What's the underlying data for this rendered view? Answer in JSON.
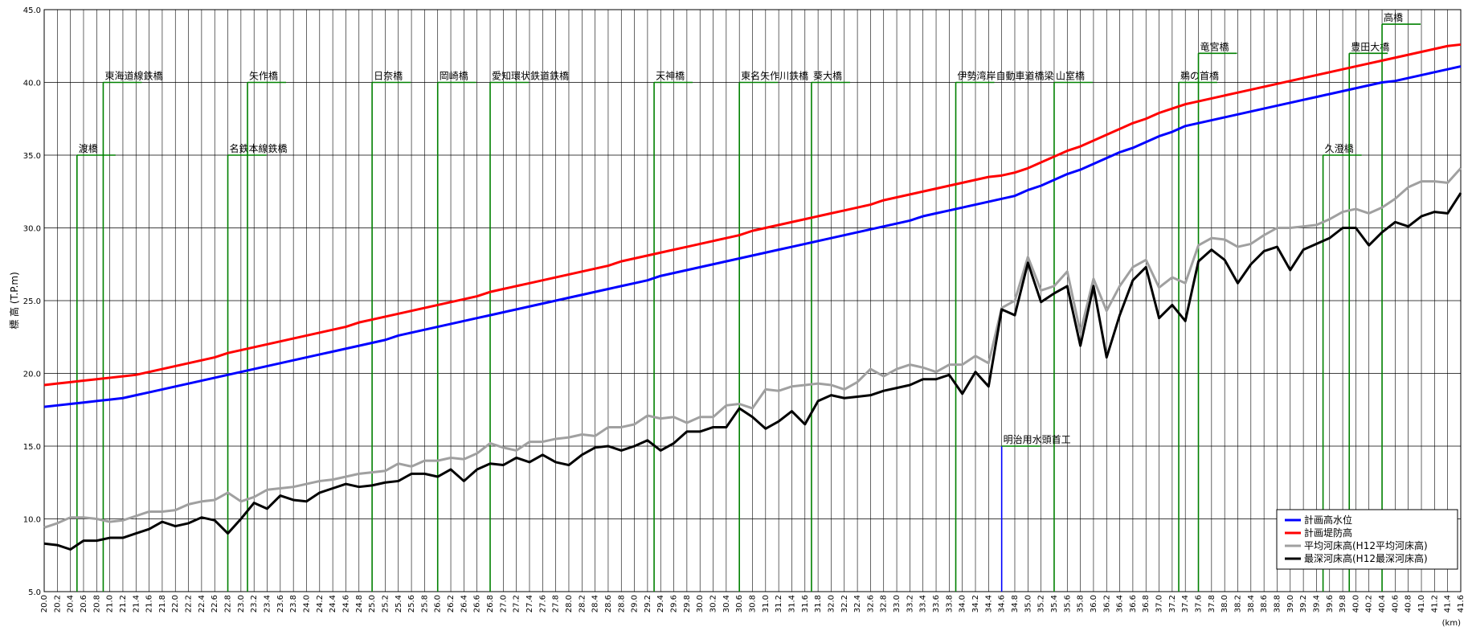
{
  "chart_data": {
    "type": "line",
    "y_axis_label": "標 高 (T.P.m)",
    "x_axis_label": "(km)",
    "xlim": [
      20,
      41.6
    ],
    "ylim": [
      5,
      45
    ],
    "grid": true,
    "legend": "lower right",
    "yticks": [
      {
        "value": 5,
        "label": "5.0"
      },
      {
        "value": 10,
        "label": "10.0"
      },
      {
        "value": 15,
        "label": "15.0"
      },
      {
        "value": 20,
        "label": "20.0"
      },
      {
        "value": 25,
        "label": "25.0"
      },
      {
        "value": 30,
        "label": "30.0"
      },
      {
        "value": 35,
        "label": "35.0"
      },
      {
        "value": 40,
        "label": "40.0"
      },
      {
        "value": 45,
        "label": "45.0"
      }
    ],
    "xticks": [
      {
        "value": 20,
        "label": "20.0"
      },
      {
        "value": 20.2,
        "label": "20.2"
      },
      {
        "value": 20.4,
        "label": "20.4"
      },
      {
        "value": 20.6,
        "label": "20.6"
      },
      {
        "value": 20.8,
        "label": "20.8"
      },
      {
        "value": 21,
        "label": "21.0"
      },
      {
        "value": 21.2,
        "label": "21.2"
      },
      {
        "value": 21.4,
        "label": "21.4"
      },
      {
        "value": 21.6,
        "label": "21.6"
      },
      {
        "value": 21.8,
        "label": "21.8"
      },
      {
        "value": 22,
        "label": "22.0"
      },
      {
        "value": 22.2,
        "label": "22.2"
      },
      {
        "value": 22.4,
        "label": "22.4"
      },
      {
        "value": 22.6,
        "label": "22.6"
      },
      {
        "value": 22.8,
        "label": "22.8"
      },
      {
        "value": 23,
        "label": "23.0"
      },
      {
        "value": 23.2,
        "label": "23.2"
      },
      {
        "value": 23.4,
        "label": "23.4"
      },
      {
        "value": 23.6,
        "label": "23.6"
      },
      {
        "value": 23.8,
        "label": "23.8"
      },
      {
        "value": 24,
        "label": "24.0"
      },
      {
        "value": 24.2,
        "label": "24.2"
      },
      {
        "value": 24.4,
        "label": "24.4"
      },
      {
        "value": 24.6,
        "label": "24.6"
      },
      {
        "value": 24.8,
        "label": "24.8"
      },
      {
        "value": 25,
        "label": "25.0"
      },
      {
        "value": 25.2,
        "label": "25.2"
      },
      {
        "value": 25.4,
        "label": "25.4"
      },
      {
        "value": 25.6,
        "label": "25.6"
      },
      {
        "value": 25.8,
        "label": "25.8"
      },
      {
        "value": 26,
        "label": "26.0"
      },
      {
        "value": 26.2,
        "label": "26.2"
      },
      {
        "value": 26.4,
        "label": "26.4"
      },
      {
        "value": 26.6,
        "label": "26.6"
      },
      {
        "value": 26.8,
        "label": "26.8"
      },
      {
        "value": 27,
        "label": "27.0"
      },
      {
        "value": 27.2,
        "label": "27.2"
      },
      {
        "value": 27.4,
        "label": "27.4"
      },
      {
        "value": 27.6,
        "label": "27.6"
      },
      {
        "value": 27.8,
        "label": "27.8"
      },
      {
        "value": 28,
        "label": "28.0"
      },
      {
        "value": 28.2,
        "label": "28.2"
      },
      {
        "value": 28.4,
        "label": "28.4"
      },
      {
        "value": 28.6,
        "label": "28.6"
      },
      {
        "value": 28.8,
        "label": "28.8"
      },
      {
        "value": 29,
        "label": "29.0"
      },
      {
        "value": 29.2,
        "label": "29.2"
      },
      {
        "value": 29.4,
        "label": "29.4"
      },
      {
        "value": 29.6,
        "label": "29.6"
      },
      {
        "value": 29.8,
        "label": "29.8"
      },
      {
        "value": 30,
        "label": "30.0"
      },
      {
        "value": 30.2,
        "label": "30.2"
      },
      {
        "value": 30.4,
        "label": "30.4"
      },
      {
        "value": 30.6,
        "label": "30.6"
      },
      {
        "value": 30.8,
        "label": "30.8"
      },
      {
        "value": 31,
        "label": "31.0"
      },
      {
        "value": 31.2,
        "label": "31.2"
      },
      {
        "value": 31.4,
        "label": "31.4"
      },
      {
        "value": 31.6,
        "label": "31.6"
      },
      {
        "value": 31.8,
        "label": "31.8"
      },
      {
        "value": 32,
        "label": "32.0"
      },
      {
        "value": 32.2,
        "label": "32.2"
      },
      {
        "value": 32.4,
        "label": "32.4"
      },
      {
        "value": 32.6,
        "label": "32.6"
      },
      {
        "value": 32.8,
        "label": "32.8"
      },
      {
        "value": 33,
        "label": "33.0"
      },
      {
        "value": 33.2,
        "label": "33.2"
      },
      {
        "value": 33.4,
        "label": "33.4"
      },
      {
        "value": 33.6,
        "label": "33.6"
      },
      {
        "value": 33.8,
        "label": "33.8"
      },
      {
        "value": 34,
        "label": "34.0"
      },
      {
        "value": 34.2,
        "label": "34.2"
      },
      {
        "value": 34.4,
        "label": "34.4"
      },
      {
        "value": 34.6,
        "label": "34.6"
      },
      {
        "value": 34.8,
        "label": "34.8"
      },
      {
        "value": 35,
        "label": "35.0"
      },
      {
        "value": 35.2,
        "label": "35.2"
      },
      {
        "value": 35.4,
        "label": "35.4"
      },
      {
        "value": 35.6,
        "label": "35.6"
      },
      {
        "value": 35.8,
        "label": "35.8"
      },
      {
        "value": 36,
        "label": "36.0"
      },
      {
        "value": 36.2,
        "label": "36.2"
      },
      {
        "value": 36.4,
        "label": "36.4"
      },
      {
        "value": 36.6,
        "label": "36.6"
      },
      {
        "value": 36.8,
        "label": "36.8"
      },
      {
        "value": 37,
        "label": "37.0"
      },
      {
        "value": 37.2,
        "label": "37.2"
      },
      {
        "value": 37.4,
        "label": "37.4"
      },
      {
        "value": 37.6,
        "label": "37.6"
      },
      {
        "value": 37.8,
        "label": "37.8"
      },
      {
        "value": 38,
        "label": "38.0"
      },
      {
        "value": 38.2,
        "label": "38.2"
      },
      {
        "value": 38.4,
        "label": "38.4"
      },
      {
        "value": 38.6,
        "label": "38.6"
      },
      {
        "value": 38.8,
        "label": "38.8"
      },
      {
        "value": 39,
        "label": "39.0"
      },
      {
        "value": 39.2,
        "label": "39.2"
      },
      {
        "value": 39.4,
        "label": "39.4"
      },
      {
        "value": 39.6,
        "label": "39.6"
      },
      {
        "value": 39.8,
        "label": "39.8"
      },
      {
        "value": 40,
        "label": "40.0"
      },
      {
        "value": 40.2,
        "label": "40.2"
      },
      {
        "value": 40.4,
        "label": "40.4"
      },
      {
        "value": 40.6,
        "label": "40.6"
      },
      {
        "value": 40.8,
        "label": "40.8"
      },
      {
        "value": 41,
        "label": "41.0"
      },
      {
        "value": 41.2,
        "label": "41.2"
      },
      {
        "value": 41.4,
        "label": "41.4"
      },
      {
        "value": 41.6,
        "label": "41.6"
      }
    ],
    "x": [
      20,
      20.2,
      20.4,
      20.6,
      20.8,
      21,
      21.2,
      21.4,
      21.6,
      21.8,
      22,
      22.2,
      22.4,
      22.6,
      22.8,
      23,
      23.2,
      23.4,
      23.6,
      23.8,
      24,
      24.2,
      24.4,
      24.6,
      24.8,
      25,
      25.2,
      25.4,
      25.6,
      25.8,
      26,
      26.2,
      26.4,
      26.6,
      26.8,
      27,
      27.2,
      27.4,
      27.6,
      27.8,
      28,
      28.2,
      28.4,
      28.6,
      28.8,
      29,
      29.2,
      29.4,
      29.6,
      29.8,
      30,
      30.2,
      30.4,
      30.6,
      30.8,
      31,
      31.2,
      31.4,
      31.6,
      31.8,
      32,
      32.2,
      32.4,
      32.6,
      32.8,
      33,
      33.2,
      33.4,
      33.6,
      33.8,
      34,
      34.2,
      34.4,
      34.6,
      34.8,
      35,
      35.2,
      35.4,
      35.6,
      35.8,
      36,
      36.2,
      36.4,
      36.6,
      36.8,
      37,
      37.2,
      37.4,
      37.6,
      37.8,
      38,
      38.2,
      38.4,
      38.6,
      38.8,
      39,
      39.2,
      39.4,
      39.6,
      39.8,
      40,
      40.2,
      40.4,
      40.6,
      40.8,
      41,
      41.2,
      41.4,
      41.6
    ],
    "series": [
      {
        "name": "計画高水位",
        "color": "#0000ff",
        "values": [
          17.7,
          17.8,
          17.9,
          18.0,
          18.1,
          18.2,
          18.3,
          18.5,
          18.7,
          18.9,
          19.1,
          19.3,
          19.5,
          19.7,
          19.9,
          20.1,
          20.3,
          20.5,
          20.7,
          20.9,
          21.1,
          21.3,
          21.5,
          21.7,
          21.9,
          22.1,
          22.3,
          22.6,
          22.8,
          23.0,
          23.2,
          23.4,
          23.6,
          23.8,
          24.0,
          24.2,
          24.4,
          24.6,
          24.8,
          25.0,
          25.2,
          25.4,
          25.6,
          25.8,
          26.0,
          26.2,
          26.4,
          26.7,
          26.9,
          27.1,
          27.3,
          27.5,
          27.7,
          27.9,
          28.1,
          28.3,
          28.5,
          28.7,
          28.9,
          29.1,
          29.3,
          29.5,
          29.7,
          29.9,
          30.1,
          30.3,
          30.5,
          30.8,
          31.0,
          31.2,
          31.4,
          31.6,
          31.8,
          32.0,
          32.2,
          32.6,
          32.9,
          33.3,
          33.7,
          34.0,
          34.4,
          34.8,
          35.2,
          35.5,
          35.9,
          36.3,
          36.6,
          37.0,
          37.2,
          37.4,
          37.6,
          37.8,
          38.0,
          38.2,
          38.4,
          38.6,
          38.8,
          39.0,
          39.2,
          39.4,
          39.6,
          39.8,
          40.0,
          40.1,
          40.3,
          40.5,
          40.7,
          40.9,
          41.1
        ]
      },
      {
        "name": "計画堤防高",
        "color": "#ff0000",
        "values": [
          19.2,
          19.3,
          19.4,
          19.5,
          19.6,
          19.7,
          19.8,
          19.9,
          20.1,
          20.3,
          20.5,
          20.7,
          20.9,
          21.1,
          21.4,
          21.6,
          21.8,
          22.0,
          22.2,
          22.4,
          22.6,
          22.8,
          23.0,
          23.2,
          23.5,
          23.7,
          23.9,
          24.1,
          24.3,
          24.5,
          24.7,
          24.9,
          25.1,
          25.3,
          25.6,
          25.8,
          26.0,
          26.2,
          26.4,
          26.6,
          26.8,
          27.0,
          27.2,
          27.4,
          27.7,
          27.9,
          28.1,
          28.3,
          28.5,
          28.7,
          28.9,
          29.1,
          29.3,
          29.5,
          29.8,
          30.0,
          30.2,
          30.4,
          30.6,
          30.8,
          31.0,
          31.2,
          31.4,
          31.6,
          31.9,
          32.1,
          32.3,
          32.5,
          32.7,
          32.9,
          33.1,
          33.3,
          33.5,
          33.6,
          33.8,
          34.1,
          34.5,
          34.9,
          35.3,
          35.6,
          36.0,
          36.4,
          36.8,
          37.2,
          37.5,
          37.9,
          38.2,
          38.5,
          38.7,
          38.9,
          39.1,
          39.3,
          39.5,
          39.7,
          39.9,
          40.1,
          40.3,
          40.5,
          40.7,
          40.9,
          41.1,
          41.3,
          41.5,
          41.7,
          41.9,
          42.1,
          42.3,
          42.5,
          42.6
        ]
      },
      {
        "name": "平均河床高(H12平均河床高)",
        "color": "#a0a0a0",
        "values": [
          9.4,
          9.7,
          10.1,
          10.1,
          10.0,
          9.8,
          9.9,
          10.2,
          10.5,
          10.5,
          10.6,
          11.0,
          11.2,
          11.3,
          11.8,
          11.2,
          11.5,
          12.0,
          12.1,
          12.2,
          12.4,
          12.6,
          12.7,
          12.9,
          13.1,
          13.2,
          13.3,
          13.8,
          13.6,
          14.0,
          14.0,
          14.2,
          14.1,
          14.5,
          15.2,
          14.9,
          14.7,
          15.3,
          15.3,
          15.5,
          15.6,
          15.8,
          15.7,
          16.3,
          16.3,
          16.5,
          17.1,
          16.9,
          17.0,
          16.6,
          17.0,
          17.0,
          17.8,
          17.9,
          17.6,
          18.9,
          18.8,
          19.1,
          19.2,
          19.3,
          19.2,
          18.9,
          19.4,
          20.3,
          19.8,
          20.3,
          20.6,
          20.4,
          20.1,
          20.6,
          20.6,
          21.2,
          20.7,
          24.5,
          25.0,
          28.0,
          25.7,
          26.0,
          27.0,
          22.8,
          26.5,
          24.3,
          26.0,
          27.3,
          27.8,
          25.9,
          26.6,
          26.2,
          28.8,
          29.3,
          29.2,
          28.7,
          28.9,
          29.5,
          30.0,
          30.0,
          30.1,
          30.2,
          30.6,
          31.1,
          31.3,
          31.0,
          31.4,
          32.0,
          32.8,
          33.2,
          33.2,
          33.1,
          34.1
        ]
      },
      {
        "name": "最深河床高(H12最深河床高)",
        "color": "#000000",
        "values": [
          8.3,
          8.2,
          7.9,
          8.5,
          8.5,
          8.7,
          8.7,
          9.0,
          9.3,
          9.8,
          9.5,
          9.7,
          10.1,
          9.9,
          9.0,
          10.0,
          11.1,
          10.7,
          11.6,
          11.3,
          11.2,
          11.8,
          12.1,
          12.4,
          12.2,
          12.3,
          12.5,
          12.6,
          13.1,
          13.1,
          12.9,
          13.4,
          12.6,
          13.4,
          13.8,
          13.7,
          14.2,
          13.9,
          14.4,
          13.9,
          13.7,
          14.4,
          14.9,
          15.0,
          14.7,
          15.0,
          15.4,
          14.7,
          15.2,
          16.0,
          16.0,
          16.3,
          16.3,
          17.6,
          17.0,
          16.2,
          16.7,
          17.4,
          16.5,
          18.1,
          18.5,
          18.3,
          18.4,
          18.5,
          18.8,
          19.0,
          19.2,
          19.6,
          19.6,
          19.9,
          18.6,
          20.1,
          19.1,
          24.4,
          24.0,
          27.6,
          24.9,
          25.5,
          26.0,
          21.9,
          26.0,
          21.1,
          24.0,
          26.4,
          27.3,
          23.8,
          24.7,
          23.6,
          27.7,
          28.5,
          27.8,
          26.2,
          27.5,
          28.4,
          28.7,
          27.1,
          28.5,
          28.9,
          29.3,
          30.0,
          30.0,
          28.8,
          29.7,
          30.4,
          30.1,
          30.8,
          31.1,
          31.0,
          32.4
        ]
      }
    ],
    "annotation_color": "#008000",
    "annotations": [
      {
        "text": "渡橋",
        "x": 20.5,
        "y": 35
      },
      {
        "text": "東海道線鉄橋",
        "x": 20.9,
        "y": 40
      },
      {
        "text": "名鉄本線鉄橋",
        "x": 22.8,
        "y": 35
      },
      {
        "text": "矢作橋",
        "x": 23.1,
        "y": 40
      },
      {
        "text": "日奈橋",
        "x": 25.0,
        "y": 40
      },
      {
        "text": "岡崎橋",
        "x": 26.0,
        "y": 40
      },
      {
        "text": "愛知環状鉄道鉄橋",
        "x": 26.8,
        "y": 40
      },
      {
        "text": "天神橋",
        "x": 29.3,
        "y": 40
      },
      {
        "text": "東名矢作川鉄橋",
        "x": 30.6,
        "y": 40
      },
      {
        "text": "葵大橋",
        "x": 31.7,
        "y": 40
      },
      {
        "text": "伊勢湾岸自動車道橋梁",
        "x": 33.9,
        "y": 40
      },
      {
        "text": "山室橋",
        "x": 35.4,
        "y": 40
      },
      {
        "text": "明治用水頭首工",
        "x": 34.6,
        "y": 15,
        "color": "#0000ff"
      },
      {
        "text": "鵜の首橋",
        "x": 37.3,
        "y": 40
      },
      {
        "text": "竜宮橋",
        "x": 37.6,
        "y": 42
      },
      {
        "text": "久澄橋",
        "x": 39.5,
        "y": 35
      },
      {
        "text": "豊田大橋",
        "x": 39.9,
        "y": 42
      },
      {
        "text": "高橋",
        "x": 40.4,
        "y": 44
      }
    ]
  }
}
